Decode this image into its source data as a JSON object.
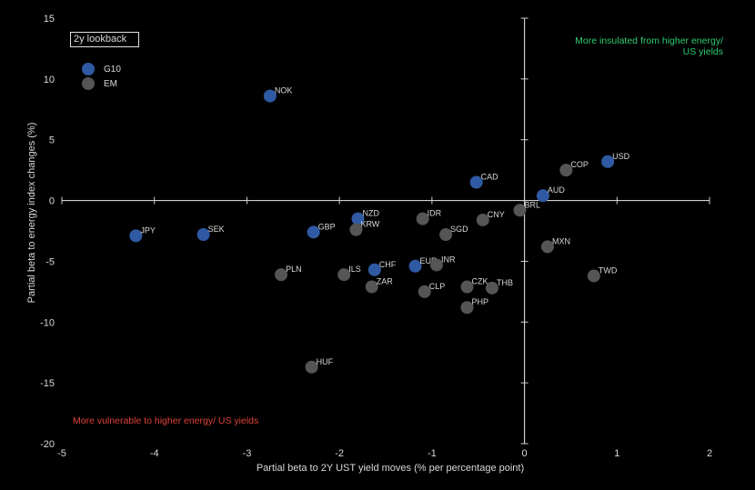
{
  "lookback_label": "2y lookback",
  "annotations": {
    "top_right": "More insulated from higher energy/ US yields",
    "bottom_left": "More vulnerable to higher energy/ US yields"
  },
  "colors": {
    "G10": "#2f5aa3",
    "EM": "#555555",
    "top_right_text": "#2ecc71",
    "bottom_left_text": "#e0403a"
  },
  "chart_data": {
    "type": "scatter",
    "xlabel": "Partial beta to 2Y UST yield moves (% per percentage point)",
    "ylabel": "Partial beta to energy index changes (%)",
    "xlim": [
      -5,
      2
    ],
    "ylim": [
      -20,
      15
    ],
    "x_ticks": [
      -5,
      -4,
      -3,
      -2,
      -1,
      0,
      1,
      2
    ],
    "y_ticks": [
      15,
      10,
      5,
      0,
      -5,
      -10,
      -15,
      -20
    ],
    "grid": false,
    "legend": {
      "position": "top-left",
      "entries": [
        "G10",
        "EM"
      ]
    },
    "series": [
      {
        "name": "G10",
        "points": [
          {
            "label": "NOK",
            "x": -2.75,
            "y": 8.6
          },
          {
            "label": "USD",
            "x": 0.9,
            "y": 3.2
          },
          {
            "label": "CAD",
            "x": -0.52,
            "y": 1.5
          },
          {
            "label": "AUD",
            "x": 0.2,
            "y": 0.4
          },
          {
            "label": "NZD",
            "x": -1.8,
            "y": -1.5
          },
          {
            "label": "GBP",
            "x": -2.28,
            "y": -2.6
          },
          {
            "label": "JPY",
            "x": -4.2,
            "y": -2.9
          },
          {
            "label": "SEK",
            "x": -3.47,
            "y": -2.8
          },
          {
            "label": "CHF",
            "x": -1.62,
            "y": -5.7
          },
          {
            "label": "EUR",
            "x": -1.18,
            "y": -5.4
          }
        ]
      },
      {
        "name": "EM",
        "points": [
          {
            "label": "COP",
            "x": 0.45,
            "y": 2.5
          },
          {
            "label": "BRL",
            "x": -0.05,
            "y": -0.8
          },
          {
            "label": "IDR",
            "x": -1.1,
            "y": -1.5
          },
          {
            "label": "CNY",
            "x": -0.45,
            "y": -1.6
          },
          {
            "label": "KRW",
            "x": -1.82,
            "y": -2.4
          },
          {
            "label": "SGD",
            "x": -0.85,
            "y": -2.8
          },
          {
            "label": "MXN",
            "x": 0.25,
            "y": -3.8
          },
          {
            "label": "PLN",
            "x": -2.63,
            "y": -6.1
          },
          {
            "label": "ILS",
            "x": -1.95,
            "y": -6.1
          },
          {
            "label": "INR",
            "x": -0.95,
            "y": -5.3
          },
          {
            "label": "ZAR",
            "x": -1.65,
            "y": -7.1
          },
          {
            "label": "CLP",
            "x": -1.08,
            "y": -7.5
          },
          {
            "label": "CZK",
            "x": -0.62,
            "y": -7.1
          },
          {
            "label": "THB",
            "x": -0.35,
            "y": -7.2
          },
          {
            "label": "TWD",
            "x": 0.75,
            "y": -6.2
          },
          {
            "label": "PHP",
            "x": -0.62,
            "y": -8.8
          },
          {
            "label": "HUF",
            "x": -2.3,
            "y": -13.7
          }
        ]
      }
    ]
  }
}
